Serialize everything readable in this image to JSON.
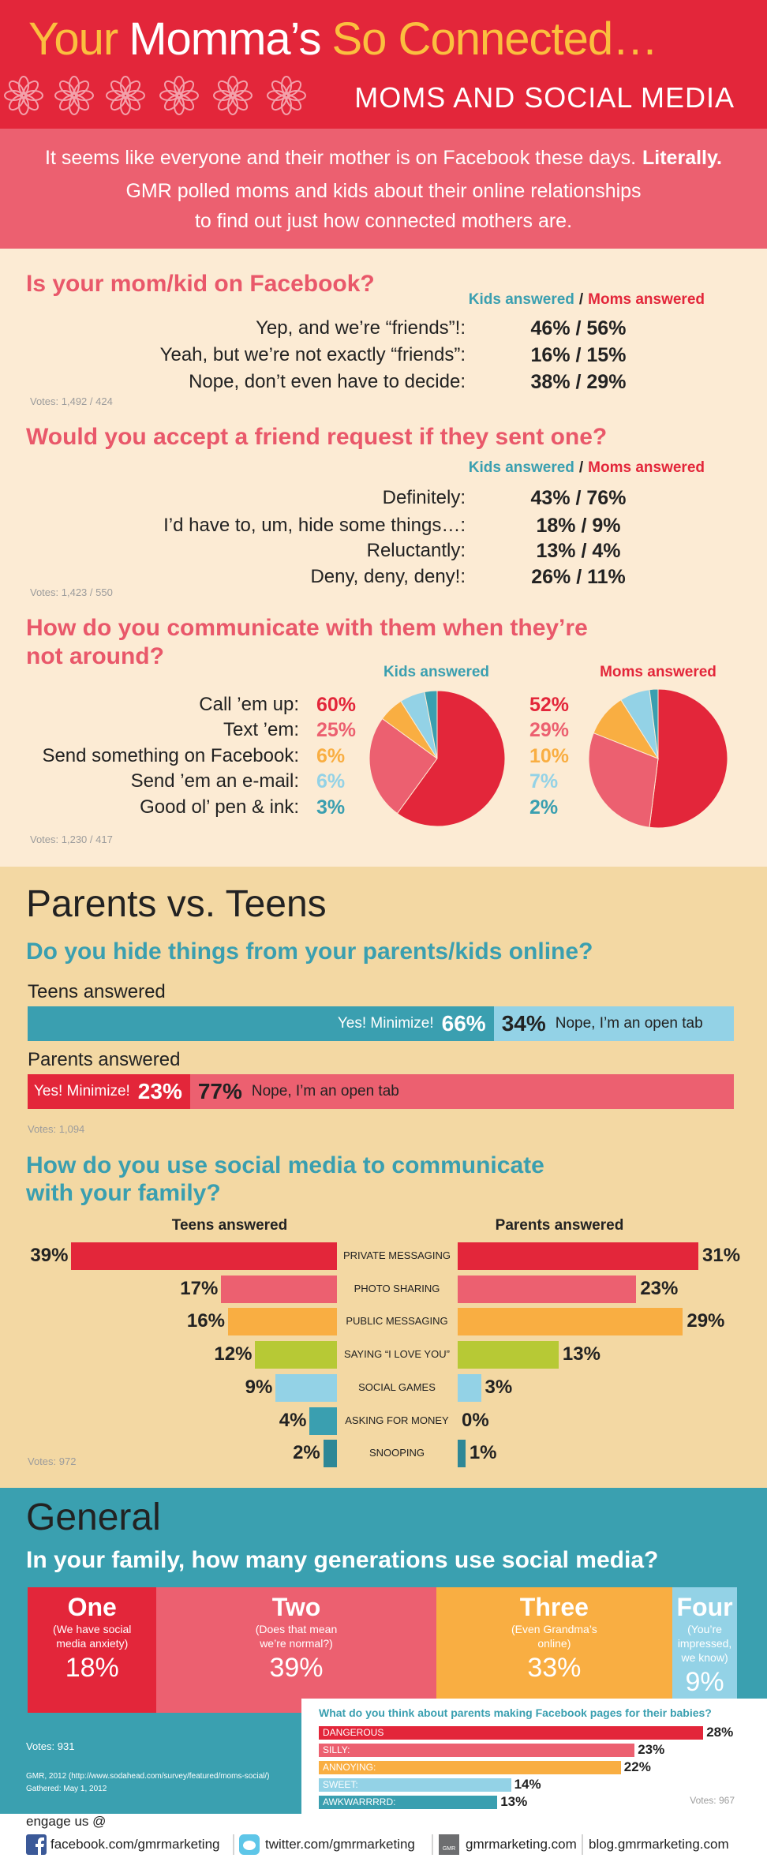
{
  "header": {
    "title": [
      "Your",
      "Momma’s",
      "So Connected…"
    ],
    "subtitle": "MOMS AND SOCIAL MEDIA"
  },
  "intro": {
    "line1": "It seems like everyone and their mother is on Facebook these days.",
    "line1_bold": "Literally.",
    "line2": "GMR polled moms and kids about their online relationships",
    "line3": "to find out just how connected mothers are."
  },
  "q1": {
    "question": "Is your mom/kid on Facebook?",
    "legend": {
      "kids": "Kids answered",
      "separator": "/",
      "moms": "Moms answered"
    },
    "rows": [
      {
        "answer": "Yep, and we’re “friends”!:",
        "result": "46% / 56%"
      },
      {
        "answer": "Yeah, but we’re not exactly “friends”:",
        "result": "16% / 15%"
      },
      {
        "answer": "Nope, don’t even have to decide:",
        "result": "38% / 29%"
      }
    ],
    "votes": "Votes: 1,492 / 424"
  },
  "q2": {
    "question": "Would you accept a friend request if they sent one?",
    "legend": {
      "kids": "Kids answered",
      "separator": "/",
      "moms": "Moms answered"
    },
    "rows": [
      {
        "answer": "Definitely:",
        "result": "43% / 76%"
      },
      {
        "answer": "I’d have to, um, hide some things…:",
        "result": "18% / 9%"
      },
      {
        "answer": "Reluctantly:",
        "result": "13% / 4%"
      },
      {
        "answer": "Deny, deny, deny!:",
        "result": "26% / 11%"
      }
    ],
    "votes": "Votes: 1,423 / 550"
  },
  "q3": {
    "question": [
      "How do you communicate with them when they’re",
      "not around?"
    ],
    "kids_title": "Kids answered",
    "moms_title": "Moms answered",
    "answers": [
      "Call ’em up:",
      "Text ’em:",
      "Send something on Facebook:",
      "Send ’em an e-mail:",
      "Good ol’ pen & ink:"
    ],
    "colors": [
      "#e3263a",
      "#ec6070",
      "#f9ae42",
      "#93d2e6",
      "#3a9fb0"
    ],
    "kids": {
      "values": [
        60,
        25,
        6,
        6,
        3
      ],
      "value_labels": [
        "60%",
        "25%",
        "6%",
        "6%",
        "3%"
      ]
    },
    "moms": {
      "values": [
        52,
        29,
        10,
        7,
        2
      ],
      "value_labels": [
        "52%",
        "29%",
        "10%",
        "7%",
        "2%"
      ]
    },
    "votes": "Votes: 1,230 / 417"
  },
  "pvt": {
    "heading": "Parents vs. Teens",
    "question": "Do you hide things from your parents/kids online?",
    "groups": [
      {
        "label": "Teens answered",
        "yes_text": "Yes! Minimize!",
        "no_text": "Nope, I’m an open tab",
        "values": [
          66,
          34
        ],
        "value_labels": [
          "66%",
          "34%"
        ],
        "colors": [
          "#3a9fb0",
          "#93d2e6"
        ]
      },
      {
        "label": "Parents answered",
        "yes_text": "Yes! Minimize!",
        "no_text": "Nope, I’m an open tab",
        "values": [
          23,
          77
        ],
        "value_labels": [
          "23%",
          "77%"
        ],
        "colors": [
          "#e3263a",
          "#ec6070"
        ]
      }
    ],
    "votes": "Votes: 1,094"
  },
  "social": {
    "question": [
      "How do you use social media to communicate",
      "with your family?"
    ],
    "teens_title": "Teens answered",
    "parents_title": "Parents answered",
    "categories": [
      "PRIVATE MESSAGING",
      "PHOTO SHARING",
      "PUBLIC MESSAGING",
      "SAYING “I LOVE YOU”",
      "SOCIAL GAMES",
      "ASKING FOR MONEY",
      "SNOOPING"
    ],
    "colors": [
      "#e3263a",
      "#ec6070",
      "#f9ae42",
      "#b7c935",
      "#93d2e6",
      "#3a9fb0",
      "#2e8796"
    ],
    "teens": {
      "values": [
        39,
        17,
        16,
        12,
        9,
        4,
        2
      ],
      "value_labels": [
        "39%",
        "17%",
        "16%",
        "12%",
        "9%",
        "4%",
        "2%"
      ]
    },
    "parents": {
      "values": [
        31,
        23,
        29,
        13,
        3,
        0,
        1
      ],
      "value_labels": [
        "31%",
        "23%",
        "29%",
        "13%",
        "3%",
        "0%",
        "1%"
      ]
    },
    "votes": "Votes: 972"
  },
  "general": {
    "heading": "General",
    "question": "In your family, how many generations use social media?",
    "blocks": [
      {
        "title": "One",
        "note": "(We have social media anxiety)",
        "value": 18,
        "value_label": "18%",
        "color": "#e3263a"
      },
      {
        "title": "Two",
        "note": "(Does that mean we’re normal?)",
        "value": 39,
        "value_label": "39%",
        "color": "#ec6070"
      },
      {
        "title": "Three",
        "note": "(Even Grandma’s online)",
        "value": 33,
        "value_label": "33%",
        "color": "#f9ae42"
      },
      {
        "title": "Four",
        "note": "(You’re impressed, we know)",
        "value": 9,
        "value_label": "9%",
        "color": "#93d2e6"
      }
    ],
    "votes": "Votes: 931",
    "source": [
      "GMR, 2012 (http://www.sodahead.com/survey/featured/moms-social/)",
      "Gathered: May 1, 2012"
    ]
  },
  "fb_pages": {
    "question": "What do you think about parents making Facebook pages for their babies?",
    "categories": [
      "DANGEROUS",
      "SILLY:",
      "ANNOYING:",
      "SWEET:",
      "AWKWARRRRD:"
    ],
    "values": [
      28,
      23,
      22,
      14,
      13
    ],
    "value_labels": [
      "28%",
      "23%",
      "22%",
      "14%",
      "13%"
    ],
    "colors": [
      "#e3263a",
      "#ec6070",
      "#f9ae42",
      "#93d2e6",
      "#3a9fb0"
    ],
    "votes": "Votes: 967"
  },
  "footer": {
    "engage": "engage us @",
    "facebook": "facebook.com/gmrmarketing",
    "twitter": "twitter.com/gmrmarketing",
    "gmr_icon": "GMR",
    "site": "gmrmarketing.com",
    "blog": "blog.gmrmarketing.com"
  }
}
